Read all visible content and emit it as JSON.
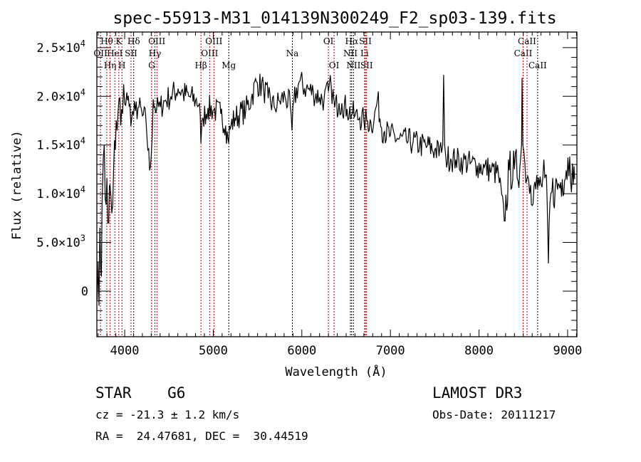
{
  "chart_data": {
    "type": "line",
    "title": "spec-55913-M31_014139N300249_F2_sp03-139.fits",
    "xlabel": "Wavelength (Å)",
    "ylabel": "Flux (relative)",
    "xlim": [
      3686,
      9105
    ],
    "ylim": [
      -4680,
      26600
    ],
    "x_ticks": [
      4000,
      5000,
      6000,
      7000,
      8000,
      9000
    ],
    "x_tick_labels": [
      "4000",
      "5000",
      "6000",
      "7000",
      "8000",
      "9000"
    ],
    "y_ticks": [
      {
        "value": 0,
        "mantissa": "0",
        "exp": ""
      },
      {
        "value": 5000,
        "mantissa": "5.0×10",
        "exp": "3"
      },
      {
        "value": 10000,
        "mantissa": "1.0×10",
        "exp": "4"
      },
      {
        "value": 15000,
        "mantissa": "1.5×10",
        "exp": "4"
      },
      {
        "value": 20000,
        "mantissa": "2.0×10",
        "exp": "4"
      },
      {
        "value": 25000,
        "mantissa": "2.5×10",
        "exp": "4"
      }
    ],
    "grid": false,
    "series": [
      {
        "name": "spectrum",
        "color": "#000000",
        "x": [
          3690,
          3700,
          3710,
          3720,
          3730,
          3745,
          3759,
          3780,
          3799,
          3820,
          3835,
          3855,
          3875,
          3895,
          3915,
          3936,
          3955,
          3976,
          4000,
          4024,
          4050,
          4080,
          4120,
          4161,
          4200,
          4241,
          4281,
          4300,
          4322,
          4360,
          4402,
          4460,
          4522,
          4603,
          4660,
          4723,
          4800,
          4844,
          4861,
          4884,
          4940,
          5005,
          5085,
          5140,
          5166,
          5200,
          5246,
          5300,
          5367,
          5430,
          5487,
          5568,
          5620,
          5688,
          5750,
          5809,
          5870,
          5889,
          5910,
          5969,
          6050,
          6130,
          6200,
          6251,
          6300,
          6331,
          6371,
          6420,
          6452,
          6510,
          6572,
          6600,
          6653,
          6700,
          6733,
          6780,
          6814,
          6854,
          6900,
          6934,
          7000,
          7095,
          7180,
          7256,
          7330,
          7416,
          7500,
          7577,
          7590,
          7601,
          7612,
          7625,
          7680,
          7738,
          7820,
          7899,
          7980,
          8060,
          8140,
          8220,
          8285,
          8341,
          8400,
          8461,
          8480,
          8486,
          8495,
          8518,
          8550,
          8582,
          8620,
          8662,
          8700,
          8743,
          8770,
          8783,
          8800,
          8823,
          8860,
          8904,
          8940,
          8984,
          9024,
          9064,
          9080
        ],
        "y": [
          -900,
          3000,
          -1500,
          6500,
          2000,
          9000,
          13800,
          9500,
          11600,
          7000,
          10900,
          8000,
          12500,
          14500,
          16500,
          19700,
          17000,
          18200,
          19200,
          20400,
          19000,
          17800,
          18500,
          18900,
          18000,
          17500,
          12400,
          14000,
          19700,
          18600,
          18900,
          19600,
          20000,
          20800,
          20300,
          20000,
          19600,
          19300,
          15200,
          17800,
          18800,
          18600,
          18200,
          17000,
          15600,
          17000,
          17800,
          18200,
          18600,
          19800,
          21500,
          20800,
          19800,
          18900,
          19500,
          20000,
          19000,
          16500,
          19500,
          21500,
          20800,
          20400,
          19900,
          19700,
          20500,
          21100,
          18900,
          19300,
          19300,
          18700,
          18200,
          18000,
          17800,
          17500,
          17500,
          17300,
          17500,
          19700,
          16800,
          16400,
          16000,
          15600,
          15400,
          15300,
          15000,
          14900,
          14500,
          14200,
          15000,
          22200,
          15000,
          13800,
          13600,
          13500,
          13300,
          13100,
          12900,
          12700,
          12400,
          12000,
          7200,
          12400,
          12500,
          12700,
          15000,
          21900,
          15000,
          13100,
          11800,
          10900,
          10700,
          10500,
          11000,
          11600,
          9000,
          2850,
          9000,
          10200,
          10500,
          10900,
          11500,
          12400,
          13800,
          10900,
          11500
        ]
      }
    ],
    "line_markers": [
      {
        "label": "OII",
        "wavelength": 3727,
        "row": 2,
        "color": "#cc0000"
      },
      {
        "label": "Hθ",
        "wavelength": 3798,
        "row": 1,
        "color": "#cc0000"
      },
      {
        "label": "Hη",
        "wavelength": 3835,
        "row": 3,
        "color": "#cc0000"
      },
      {
        "label": "HeI",
        "wavelength": 3889,
        "row": 2,
        "color": "#cc0000"
      },
      {
        "label": "K",
        "wavelength": 3934,
        "row": 1,
        "color": "#cc0000"
      },
      {
        "label": "H",
        "wavelength": 3969,
        "row": 3,
        "color": "#cc0000"
      },
      {
        "label": "SII",
        "wavelength": 4072,
        "row": 2,
        "color": "#cc0000"
      },
      {
        "label": "Hδ",
        "wavelength": 4102,
        "row": 1,
        "color": "#000000"
      },
      {
        "label": "G",
        "wavelength": 4304,
        "row": 3,
        "color": "#cc0000"
      },
      {
        "label": "Hγ",
        "wavelength": 4341,
        "row": 2,
        "color": "#cc0000"
      },
      {
        "label": "OIII",
        "wavelength": 4363,
        "row": 1,
        "color": "#cc0000"
      },
      {
        "label": "Hβ",
        "wavelength": 4861,
        "row": 3,
        "color": "#cc0000"
      },
      {
        "label": "OIII",
        "wavelength": 4959,
        "row": 2,
        "color": "#cc0000"
      },
      {
        "label": "OIII",
        "wavelength": 5007,
        "row": 1,
        "color": "#cc0000"
      },
      {
        "label": "Mg",
        "wavelength": 5175,
        "row": 3,
        "color": "#000000"
      },
      {
        "label": "Na",
        "wavelength": 5893,
        "row": 2,
        "color": "#000000"
      },
      {
        "label": "OI",
        "wavelength": 6300,
        "row": 1,
        "color": "#cc0000"
      },
      {
        "label": "OI",
        "wavelength": 6364,
        "row": 3,
        "color": "#cc0000"
      },
      {
        "label": "NII",
        "wavelength": 6548,
        "row": 2,
        "color": "#000000"
      },
      {
        "label": "Hα",
        "wavelength": 6563,
        "row": 1,
        "color": "#000000"
      },
      {
        "label": "NII",
        "wavelength": 6583,
        "row": 3,
        "color": "#000000"
      },
      {
        "label": "Li",
        "wavelength": 6708,
        "row": 2,
        "color": "#cc0000"
      },
      {
        "label": "SII",
        "wavelength": 6717,
        "row": 1,
        "color": "#cc0000"
      },
      {
        "label": "SII",
        "wavelength": 6731,
        "row": 3,
        "color": "#cc0000"
      },
      {
        "label": "CaII",
        "wavelength": 8498,
        "row": 2,
        "color": "#cc0000"
      },
      {
        "label": "CaII",
        "wavelength": 8542,
        "row": 1,
        "color": "#cc0000"
      },
      {
        "label": "CaII",
        "wavelength": 8662,
        "row": 3,
        "color": "#000000"
      }
    ]
  },
  "info": {
    "class": "STAR    G6",
    "cz": "cz = -21.3 ± 1.2 km/s",
    "radec": "RA =  24.47681, DEC =  30.44519",
    "survey": "LAMOST DR3",
    "obsdate": "Obs-Date: 20111217"
  }
}
